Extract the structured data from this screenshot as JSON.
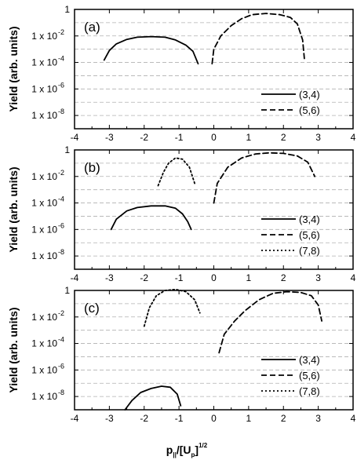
{
  "figure": {
    "xlabel_main": "p",
    "xlabel_sub": "||",
    "xlabel_mid": "/[U",
    "xlabel_sub2": "p",
    "xlabel_end": "]",
    "xlabel_sup": "1/2"
  },
  "chart_data": [
    {
      "type": "line",
      "panel_label": "(a)",
      "ylabel": "Yield (arb. units)",
      "yscale": "log",
      "xlim": [
        -4,
        4
      ],
      "ylim": [
        1e-09,
        1
      ],
      "xticks": [
        "-4",
        "-3",
        "-2",
        "-1",
        "0",
        "1",
        "2",
        "3",
        "4"
      ],
      "yticks": [
        {
          "value": 1,
          "label": "1"
        },
        {
          "value": 0.01,
          "label": "1 x 10",
          "exp": "-2"
        },
        {
          "value": 0.0001,
          "label": "1 x 10",
          "exp": "-4"
        },
        {
          "value": 1e-06,
          "label": "1 x 10",
          "exp": "-6"
        },
        {
          "value": 1e-08,
          "label": "1 x 10",
          "exp": "-8"
        }
      ],
      "grid": true,
      "legend_position": "right",
      "series": [
        {
          "name": "(3,4)",
          "style": "solid",
          "x": [
            -3.15,
            -3.0,
            -2.8,
            -2.5,
            -2.2,
            -1.8,
            -1.4,
            -1.1,
            -0.8,
            -0.6,
            -0.45
          ],
          "y": [
            0.00015,
            0.0008,
            0.0025,
            0.0055,
            0.008,
            0.009,
            0.008,
            0.005,
            0.002,
            0.0007,
            8e-05
          ]
        },
        {
          "name": "(5,6)",
          "style": "dashed",
          "x": [
            -0.05,
            0.0,
            0.2,
            0.5,
            0.8,
            1.1,
            1.5,
            1.9,
            2.2,
            2.4,
            2.55,
            2.6
          ],
          "y": [
            8e-05,
            0.001,
            0.01,
            0.06,
            0.2,
            0.4,
            0.5,
            0.4,
            0.25,
            0.08,
            0.005,
            0.0002
          ]
        }
      ]
    },
    {
      "type": "line",
      "panel_label": "(b)",
      "ylabel": "Yield (arb. units)",
      "yscale": "log",
      "xlim": [
        -4,
        4
      ],
      "ylim": [
        1e-09,
        1
      ],
      "xticks": [
        "-4",
        "-3",
        "-2",
        "-1",
        "0",
        "1",
        "2",
        "3",
        "4"
      ],
      "yticks": [
        {
          "value": 1,
          "label": "1"
        },
        {
          "value": 0.01,
          "label": "1 x 10",
          "exp": "-2"
        },
        {
          "value": 0.0001,
          "label": "1 x 10",
          "exp": "-4"
        },
        {
          "value": 1e-06,
          "label": "1 x 10",
          "exp": "-6"
        },
        {
          "value": 1e-08,
          "label": "1 x 10",
          "exp": "-8"
        }
      ],
      "grid": true,
      "legend_position": "right",
      "series": [
        {
          "name": "(3,4)",
          "style": "solid",
          "x": [
            -2.95,
            -2.8,
            -2.5,
            -2.2,
            -1.8,
            -1.4,
            -1.1,
            -0.9,
            -0.75,
            -0.65
          ],
          "y": [
            1e-06,
            6e-06,
            2.5e-05,
            4.5e-05,
            6e-05,
            6e-05,
            4e-05,
            1.5e-05,
            4e-06,
            1e-06
          ]
        },
        {
          "name": "(5,6)",
          "style": "dashed",
          "x": [
            0.0,
            0.1,
            0.4,
            0.8,
            1.2,
            1.6,
            2.0,
            2.4,
            2.7,
            2.9
          ],
          "y": [
            0.0001,
            0.003,
            0.05,
            0.25,
            0.5,
            0.6,
            0.55,
            0.35,
            0.12,
            0.01
          ]
        },
        {
          "name": "(7,8)",
          "style": "dotted",
          "x": [
            -1.6,
            -1.45,
            -1.3,
            -1.1,
            -0.9,
            -0.7,
            -0.55
          ],
          "y": [
            0.002,
            0.02,
            0.1,
            0.25,
            0.2,
            0.05,
            0.003
          ]
        }
      ]
    },
    {
      "type": "line",
      "panel_label": "(c)",
      "ylabel": "Yield (arb. units)",
      "yscale": "log",
      "xlim": [
        -4,
        4
      ],
      "ylim": [
        1e-09,
        1
      ],
      "xticks": [
        "-4",
        "-3",
        "-2",
        "-1",
        "0",
        "1",
        "2",
        "3",
        "4"
      ],
      "yticks": [
        {
          "value": 1,
          "label": "1"
        },
        {
          "value": 0.01,
          "label": "1 x 10",
          "exp": "-2"
        },
        {
          "value": 0.0001,
          "label": "1 x 10",
          "exp": "-4"
        },
        {
          "value": 1e-06,
          "label": "1 x 10",
          "exp": "-6"
        },
        {
          "value": 1e-08,
          "label": "1 x 10",
          "exp": "-8"
        }
      ],
      "grid": true,
      "legend_position": "right",
      "series": [
        {
          "name": "(3,4)",
          "style": "solid",
          "x": [
            -2.55,
            -2.35,
            -2.1,
            -1.8,
            -1.5,
            -1.25,
            -1.05,
            -0.95
          ],
          "y": [
            1e-09,
            5e-09,
            2e-08,
            4e-08,
            6e-08,
            5e-08,
            1.5e-08,
            2e-09
          ]
        },
        {
          "name": "(5,6)",
          "style": "dashed",
          "x": [
            0.15,
            0.3,
            0.6,
            0.9,
            1.3,
            1.7,
            2.1,
            2.5,
            2.8,
            3.0,
            3.1
          ],
          "y": [
            2e-05,
            0.0005,
            0.005,
            0.03,
            0.2,
            0.6,
            0.8,
            0.7,
            0.4,
            0.08,
            0.005
          ]
        },
        {
          "name": "(7,8)",
          "style": "dotted",
          "x": [
            -2.0,
            -1.85,
            -1.65,
            -1.4,
            -1.1,
            -0.8,
            -0.55,
            -0.4
          ],
          "y": [
            0.002,
            0.05,
            0.4,
            1.0,
            1.2,
            0.8,
            0.2,
            0.02
          ]
        }
      ]
    }
  ]
}
